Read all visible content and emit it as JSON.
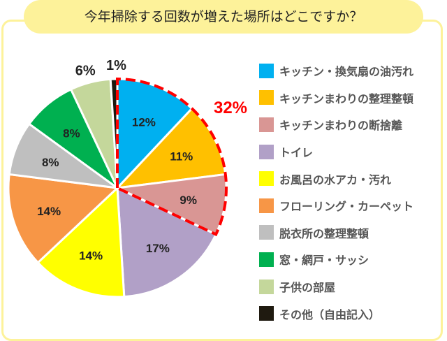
{
  "chart_data": {
    "type": "pie",
    "title": "今年掃除する回数が増えた場所はどこですか？",
    "legend_position": "right",
    "slices": [
      {
        "label": "キッチン・換気扇の油汚れ",
        "value": 12,
        "color": "#00b0f0"
      },
      {
        "label": "キッチンまわりの整理整頓",
        "value": 11,
        "color": "#ffc000"
      },
      {
        "label": "キッチンまわりの断捨離",
        "value": 9,
        "color": "#d99694"
      },
      {
        "label": "トイレ",
        "value": 17,
        "color": "#b1a0c7"
      },
      {
        "label": "お風呂の水アカ・汚れ",
        "value": 14,
        "color": "#ffff00"
      },
      {
        "label": "フローリング・カーペット",
        "value": 14,
        "color": "#f79646"
      },
      {
        "label": "脱衣所の整理整頓",
        "value": 8,
        "color": "#bfbfbf"
      },
      {
        "label": "窓・網戸・サッシ",
        "value": 8,
        "color": "#00b050"
      },
      {
        "label": "子供の部屋",
        "value": 6,
        "color": "#c4d79b"
      },
      {
        "label": "その他（自由記入）",
        "value": 1,
        "color": "#1f1a10"
      }
    ],
    "highlight": {
      "label": "32%",
      "slices": [
        0,
        1,
        2
      ],
      "color": "#ff0000"
    }
  }
}
